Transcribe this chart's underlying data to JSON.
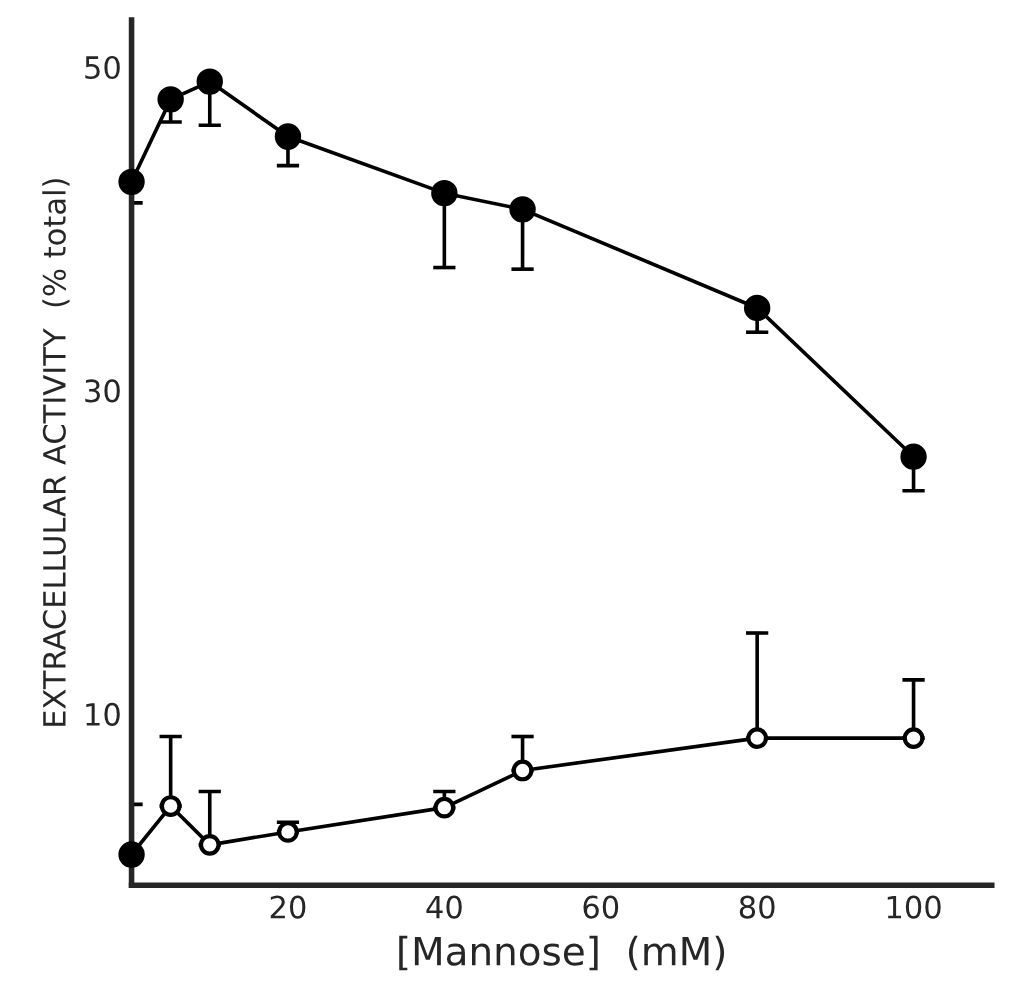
{
  "chart_data": {
    "type": "line",
    "xlabel": "[Mannose]  (mM)",
    "ylabel": "EXTRACELLULAR ACTIVITY  (% total)",
    "series": [
      {
        "color": "#000000",
        "x": [
          0,
          5,
          10,
          20,
          40,
          50,
          80,
          100
        ],
        "values": [
          42.9,
          48.0,
          49.1,
          45.7,
          42.2,
          41.2,
          35.1,
          25.9
        ],
        "errors": [
          [
            41.6,
            42.9
          ],
          [
            46.6,
            48.0
          ],
          [
            46.4,
            49.1
          ],
          [
            43.9,
            45.7
          ],
          [
            37.6,
            42.2
          ],
          [
            37.5,
            41.2
          ],
          [
            33.6,
            35.1
          ],
          [
            23.8,
            25.9
          ]
        ]
      },
      {
        "color": "#000000",
        "colors": [
          "#000000",
          "#ffffff",
          "#ffffff",
          "#ffffff",
          "#ffffff",
          "#ffffff",
          "#ffffff",
          "#ffffff"
        ],
        "x": [
          0,
          5,
          10,
          20,
          40,
          50,
          80,
          100
        ],
        "values": [
          1.3,
          4.3,
          1.9,
          2.7,
          4.2,
          6.5,
          8.5,
          8.5
        ],
        "errors": [
          [
            1.3,
            4.4
          ],
          [
            4.3,
            8.6
          ],
          [
            1.9,
            5.2
          ],
          [
            2.7,
            3.3
          ],
          [
            4.2,
            5.2
          ],
          [
            6.5,
            8.6
          ],
          [
            8.5,
            15.0
          ],
          [
            8.5,
            12.1
          ]
        ]
      }
    ],
    "xlim": [
      0,
      110
    ],
    "xticks": [
      20,
      40,
      60,
      80,
      100
    ],
    "ylim": [
      -0.6,
      52.9
    ],
    "yticks": [
      10,
      30,
      50
    ],
    "marker": "circle",
    "line_style": "solid",
    "grid": false,
    "legend": false
  }
}
